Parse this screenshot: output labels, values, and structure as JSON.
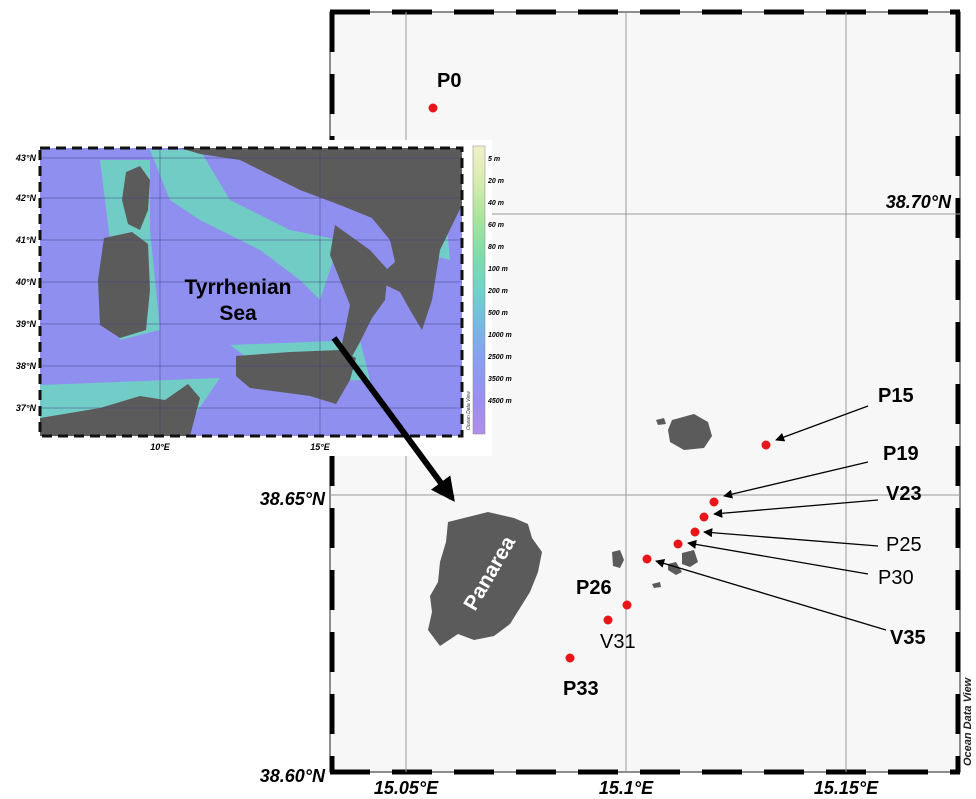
{
  "main_map": {
    "lat_labels": [
      "38.70°N",
      "38.65°N",
      "38.60°N"
    ],
    "lon_labels": [
      "15.05°E",
      "15.1°E",
      "15.15°E"
    ],
    "island_label": "Panarea",
    "watermark": "Ocean Data View",
    "stations": [
      {
        "name": "P0",
        "bold": true
      },
      {
        "name": "P15",
        "bold": true
      },
      {
        "name": "P19",
        "bold": true
      },
      {
        "name": "V23",
        "bold": true
      },
      {
        "name": "P25",
        "bold": false
      },
      {
        "name": "P30",
        "bold": false
      },
      {
        "name": "V35",
        "bold": true
      },
      {
        "name": "P26",
        "bold": true
      },
      {
        "name": "V31",
        "bold": false
      },
      {
        "name": "P33",
        "bold": true
      }
    ]
  },
  "inset": {
    "title_line1": "Tyrrhenian",
    "title_line2": "Sea",
    "lat_labels": [
      "43°N",
      "42°N",
      "41°N",
      "40°N",
      "39°N",
      "38°N",
      "37°N"
    ],
    "lon_labels": [
      "10°E",
      "15°E"
    ],
    "depth_scale": [
      "5 m",
      "20 m",
      "40 m",
      "60 m",
      "80 m",
      "100 m",
      "200 m",
      "500 m",
      "1000 m",
      "2500 m",
      "3500 m",
      "4500 m"
    ],
    "watermark": "Ocean Data View"
  },
  "colors": {
    "station": "#e8161b",
    "land": "#5b5b5b",
    "sea_deep": "#8f8ff0",
    "sea_shallow": "#6fd3c2",
    "grid": "#9a9a9a"
  }
}
